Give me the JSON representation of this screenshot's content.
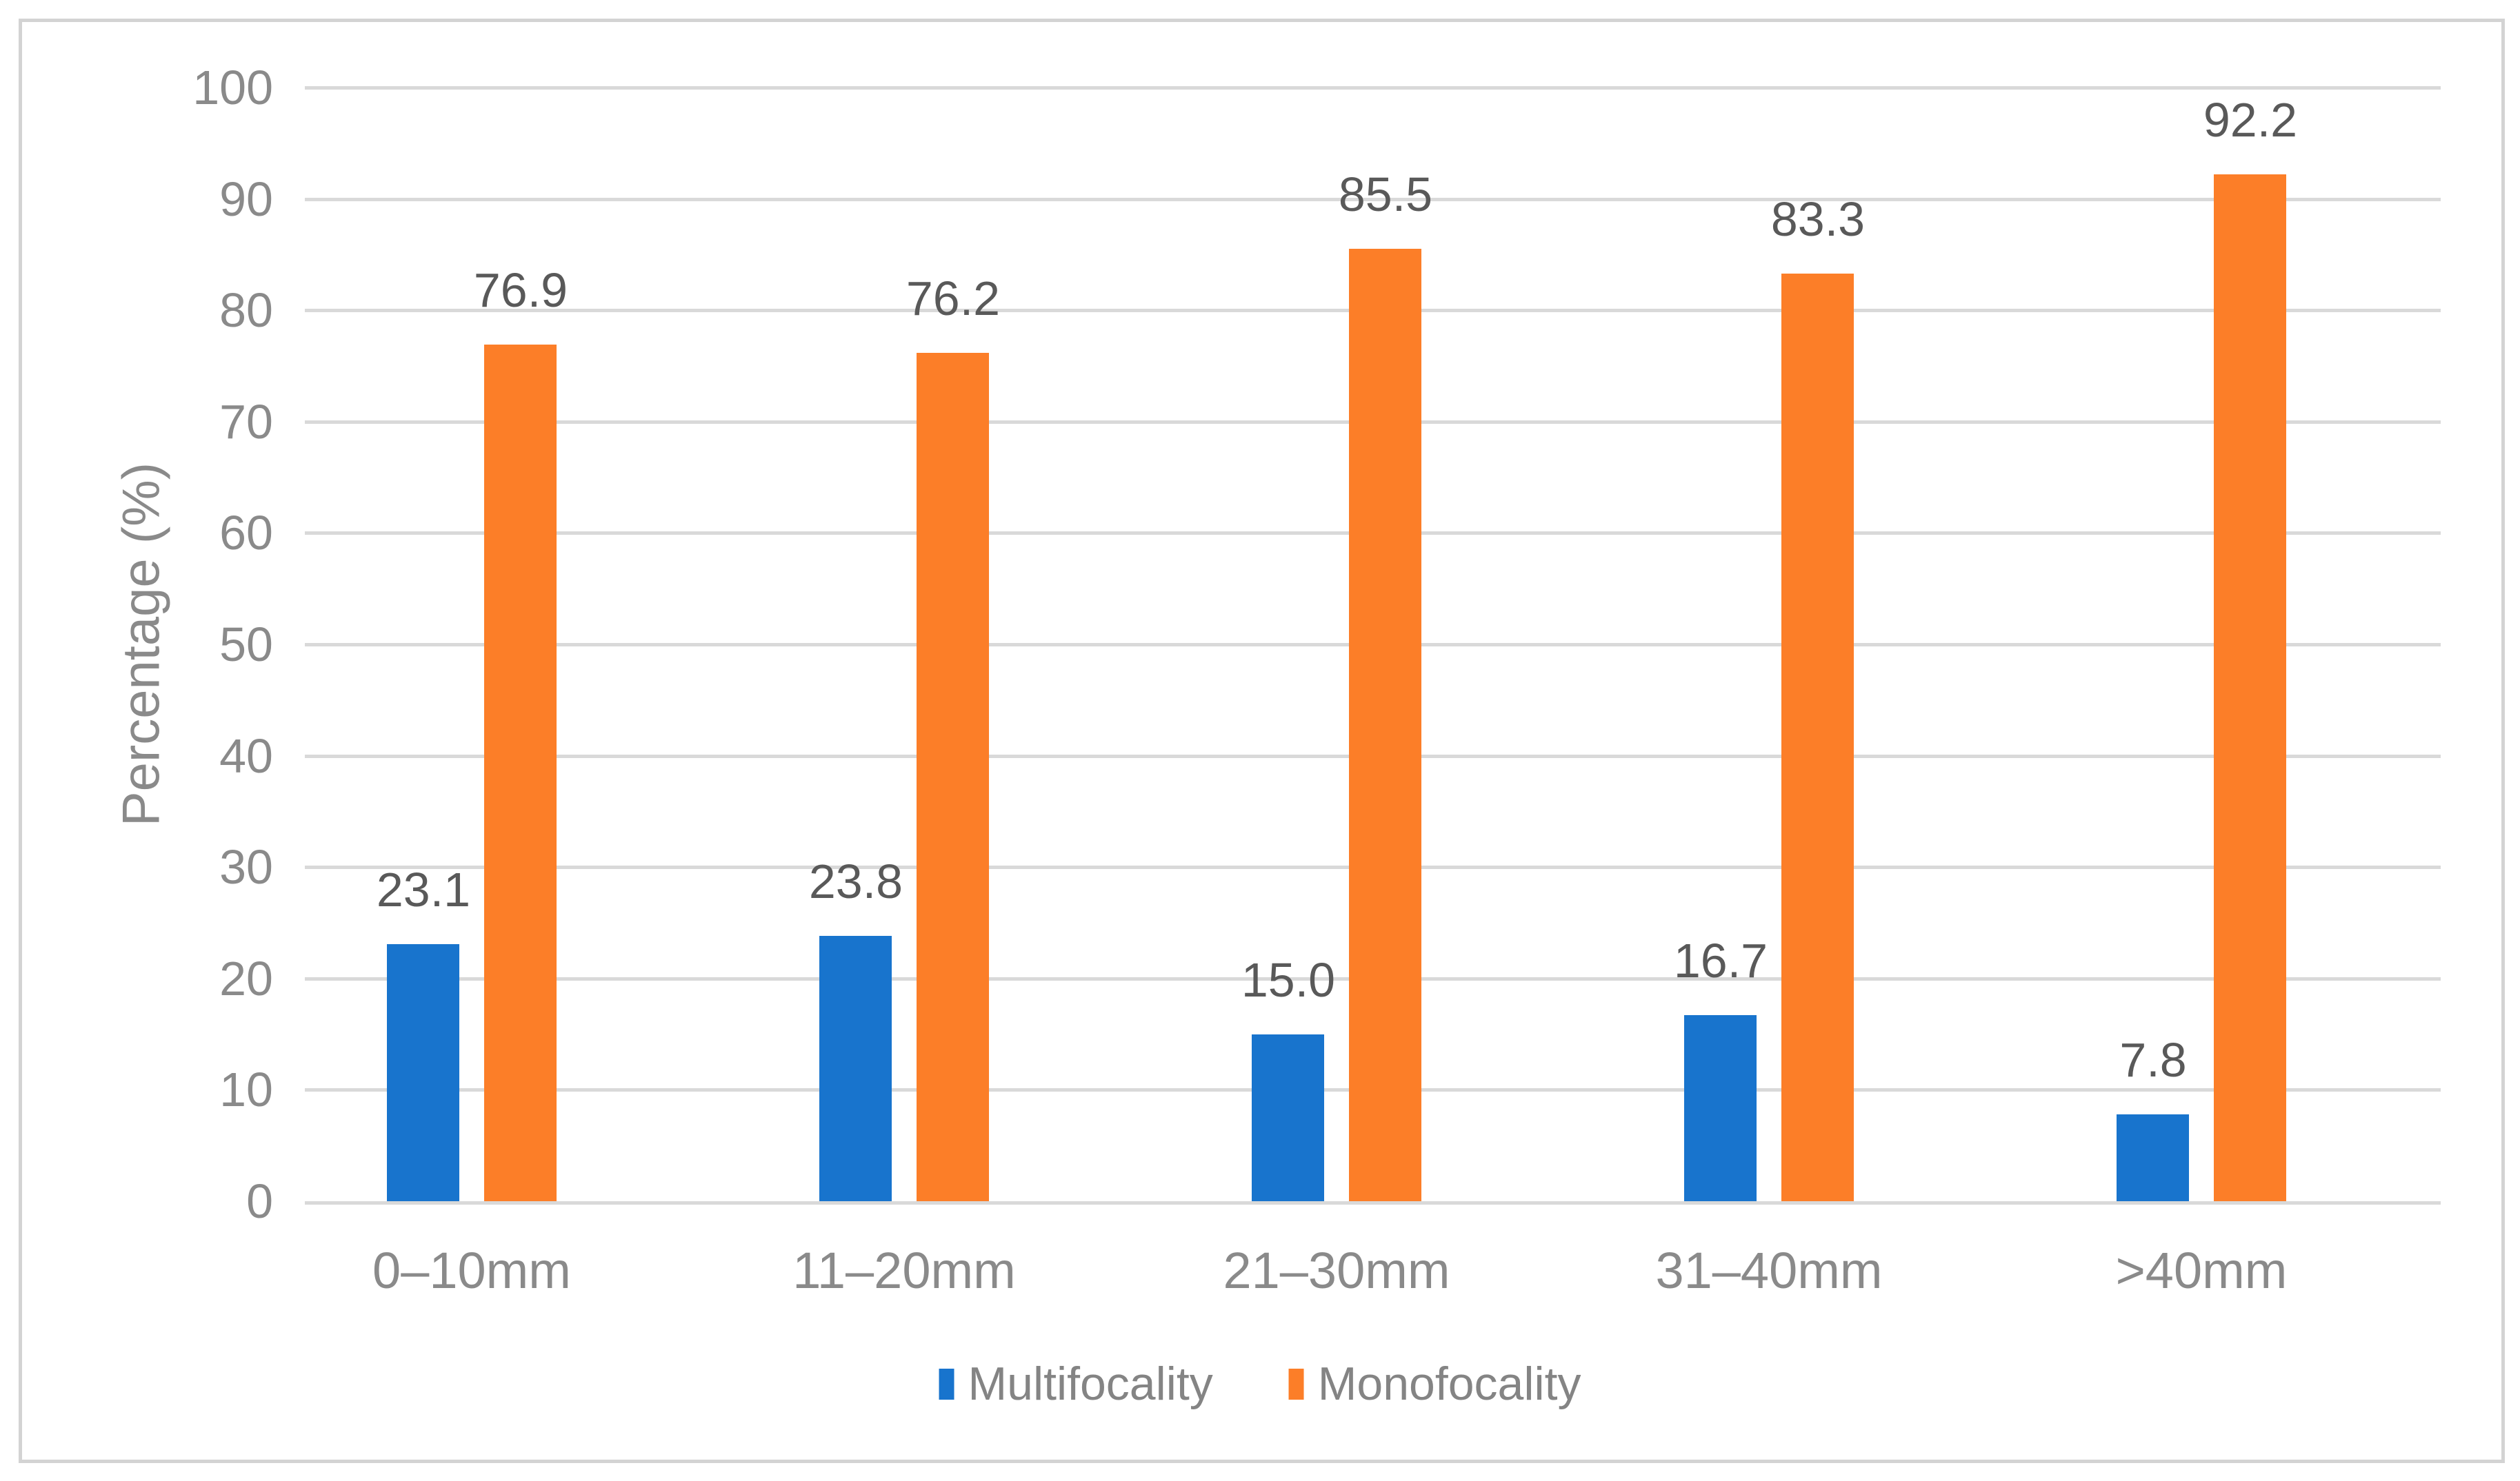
{
  "chart_data": {
    "type": "bar",
    "title": "",
    "categories": [
      "0–10mm",
      "11–20mm",
      "21–30mm",
      "31–40mm",
      ">40mm"
    ],
    "series": [
      {
        "name": "Multifocality",
        "color": "#1874CD",
        "values": [
          23.1,
          23.8,
          15.0,
          16.7,
          7.8
        ],
        "value_labels": [
          "23.1",
          "23.8",
          "15.0",
          "16.7",
          "7.8"
        ]
      },
      {
        "name": "Monofocality",
        "color": "#FC7E28",
        "values": [
          76.9,
          76.2,
          85.5,
          83.3,
          92.2
        ],
        "value_labels": [
          "76.9",
          "76.2",
          "85.5",
          "83.3",
          "92.2"
        ]
      }
    ],
    "xlabel": "",
    "ylabel": "Percentage (%)",
    "ylim": [
      0,
      100
    ],
    "ytick_interval": 10,
    "yticks": [
      0,
      10,
      20,
      30,
      40,
      50,
      60,
      70,
      80,
      90,
      100
    ],
    "grid": "horizontal",
    "legend_position": "bottom"
  },
  "colors": {
    "multifocality_bar": "#1874CD",
    "monofocality_bar": "#FC7E28",
    "gridline": "#D9D9D9",
    "axis_line": "#D9D9D9",
    "figure_border": "#D3D3D3",
    "tick_label_text": "#8A8A8A",
    "category_label_text": "#8A8A8A",
    "data_label_text": "#595959",
    "legend_text": "#848484",
    "y_title_text": "#8A8A8A",
    "background": "#FFFFFF"
  }
}
